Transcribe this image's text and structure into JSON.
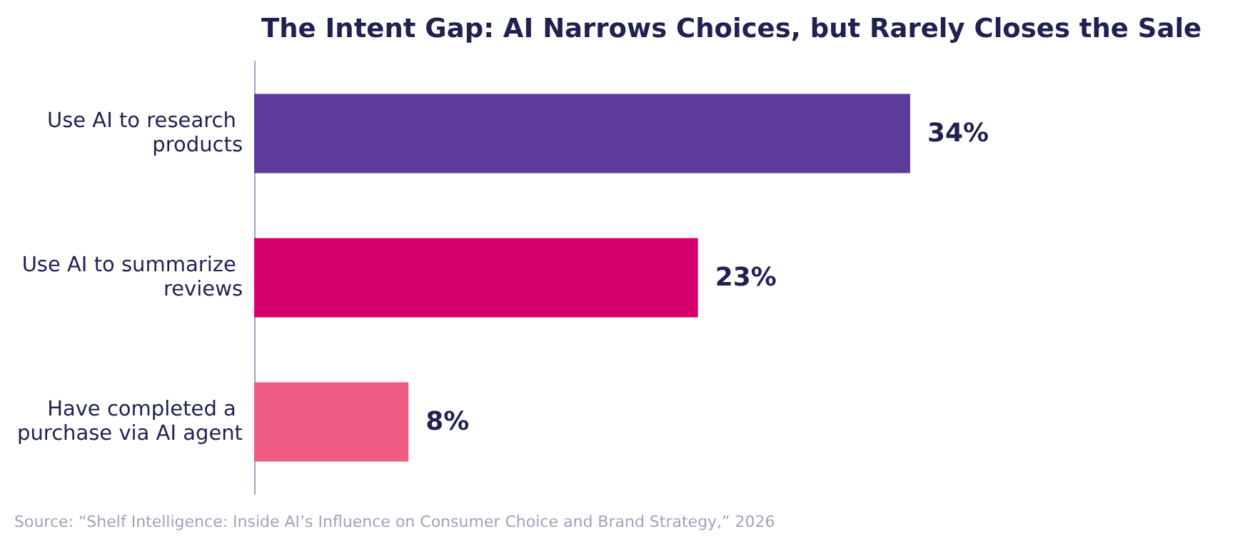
{
  "chart_data": {
    "type": "bar",
    "orientation": "horizontal",
    "title": "The Intent Gap: AI Narrows Choices, but Rarely Closes the Sale",
    "categories": [
      "Use AI to research products",
      "Use AI to summarize reviews",
      "Have completed a purchase via AI agent"
    ],
    "values": [
      34,
      23,
      8
    ],
    "colors": [
      "#5c3b9c",
      "#d5006b",
      "#ef5c81"
    ],
    "value_labels": [
      "34%",
      "23%",
      "8%"
    ],
    "tick_labels": "y",
    "grid": false,
    "annotations": [
      "Source: “Shelf Intelligence: Inside AI’s Influence on Consumer Choice and Brand Strategy,” 2026"
    ]
  }
}
